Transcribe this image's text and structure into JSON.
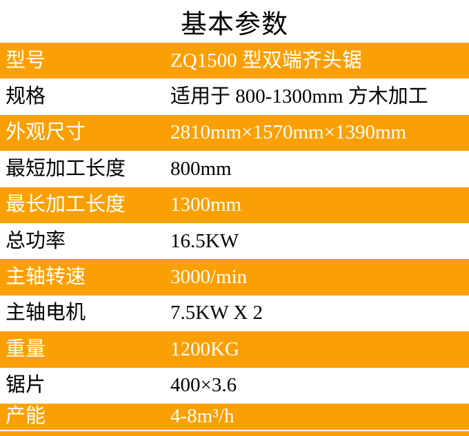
{
  "title": "基本参数",
  "colors": {
    "accent_orange": "#FAA005",
    "row_alt_white": "#FFFFFF",
    "text_on_orange": "#FFFFFF",
    "text_on_white": "#000000",
    "title_text": "#000000"
  },
  "table": {
    "rows": [
      {
        "label": "型号",
        "value": "ZQ1500 型双端齐头锯"
      },
      {
        "label": "规格",
        "value": "适用于 800-1300mm 方木加工"
      },
      {
        "label": "外观尺寸",
        "value": "2810mm×1570mm×1390mm"
      },
      {
        "label": "最短加工长度",
        "value": "800mm"
      },
      {
        "label": "最长加工长度",
        "value": "1300mm"
      },
      {
        "label": "总功率",
        "value": "16.5KW"
      },
      {
        "label": "主轴转速",
        "value": "3000/min"
      },
      {
        "label": "主轴电机",
        "value": "7.5KW X 2"
      },
      {
        "label": "重量",
        "value": "1200KG"
      },
      {
        "label": "锯片",
        "value": "400×3.6"
      },
      {
        "label": "产能",
        "value": "4-8m³/h"
      }
    ]
  }
}
